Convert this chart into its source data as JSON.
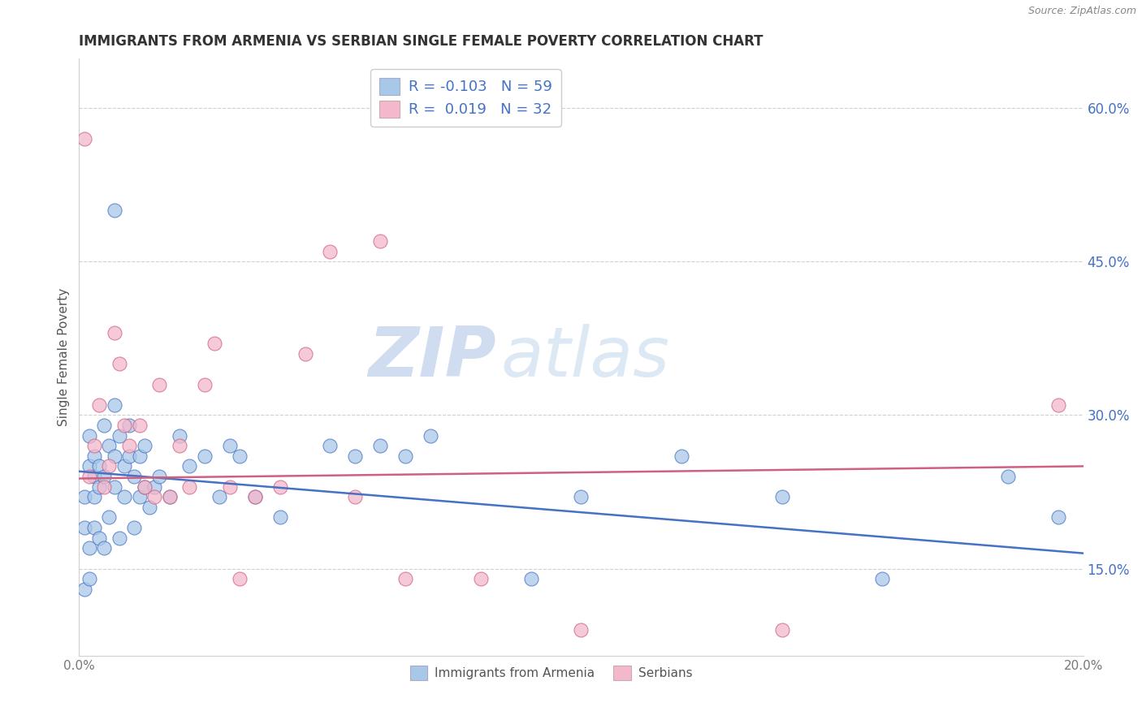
{
  "title": "IMMIGRANTS FROM ARMENIA VS SERBIAN SINGLE FEMALE POVERTY CORRELATION CHART",
  "source": "Source: ZipAtlas.com",
  "ylabel": "Single Female Poverty",
  "right_ytick_vals": [
    0.15,
    0.3,
    0.45,
    0.6
  ],
  "legend_labels": [
    "Immigrants from Armenia",
    "Serbians"
  ],
  "R_blue": -0.103,
  "N_blue": 59,
  "R_pink": 0.019,
  "N_pink": 32,
  "blue_color": "#a8c8e8",
  "pink_color": "#f4b8cc",
  "line_blue": "#4472c4",
  "line_pink": "#d06080",
  "watermark_zip": "ZIP",
  "watermark_atlas": "atlas",
  "blue_scatter_x": [
    0.001,
    0.001,
    0.001,
    0.002,
    0.002,
    0.002,
    0.002,
    0.003,
    0.003,
    0.003,
    0.003,
    0.004,
    0.004,
    0.004,
    0.005,
    0.005,
    0.005,
    0.006,
    0.006,
    0.007,
    0.007,
    0.007,
    0.007,
    0.008,
    0.008,
    0.009,
    0.009,
    0.01,
    0.01,
    0.011,
    0.011,
    0.012,
    0.012,
    0.013,
    0.013,
    0.014,
    0.015,
    0.016,
    0.018,
    0.02,
    0.022,
    0.025,
    0.028,
    0.03,
    0.032,
    0.035,
    0.04,
    0.05,
    0.055,
    0.06,
    0.065,
    0.07,
    0.09,
    0.1,
    0.12,
    0.14,
    0.16,
    0.185,
    0.195
  ],
  "blue_scatter_y": [
    0.22,
    0.19,
    0.13,
    0.25,
    0.28,
    0.14,
    0.17,
    0.26,
    0.24,
    0.22,
    0.19,
    0.25,
    0.23,
    0.18,
    0.29,
    0.24,
    0.17,
    0.27,
    0.2,
    0.31,
    0.26,
    0.23,
    0.5,
    0.28,
    0.18,
    0.25,
    0.22,
    0.29,
    0.26,
    0.24,
    0.19,
    0.26,
    0.22,
    0.27,
    0.23,
    0.21,
    0.23,
    0.24,
    0.22,
    0.28,
    0.25,
    0.26,
    0.22,
    0.27,
    0.26,
    0.22,
    0.2,
    0.27,
    0.26,
    0.27,
    0.26,
    0.28,
    0.14,
    0.22,
    0.26,
    0.22,
    0.14,
    0.24,
    0.2
  ],
  "pink_scatter_x": [
    0.001,
    0.002,
    0.003,
    0.004,
    0.005,
    0.006,
    0.007,
    0.008,
    0.009,
    0.01,
    0.012,
    0.013,
    0.015,
    0.016,
    0.018,
    0.02,
    0.022,
    0.025,
    0.027,
    0.03,
    0.032,
    0.035,
    0.04,
    0.045,
    0.05,
    0.055,
    0.06,
    0.065,
    0.08,
    0.1,
    0.14,
    0.195
  ],
  "pink_scatter_y": [
    0.57,
    0.24,
    0.27,
    0.31,
    0.23,
    0.25,
    0.38,
    0.35,
    0.29,
    0.27,
    0.29,
    0.23,
    0.22,
    0.33,
    0.22,
    0.27,
    0.23,
    0.33,
    0.37,
    0.23,
    0.14,
    0.22,
    0.23,
    0.36,
    0.46,
    0.22,
    0.47,
    0.14,
    0.14,
    0.09,
    0.09,
    0.31
  ],
  "xmin": 0.0,
  "xmax": 0.2,
  "ymin": 0.065,
  "ymax": 0.648,
  "background_color": "#ffffff"
}
